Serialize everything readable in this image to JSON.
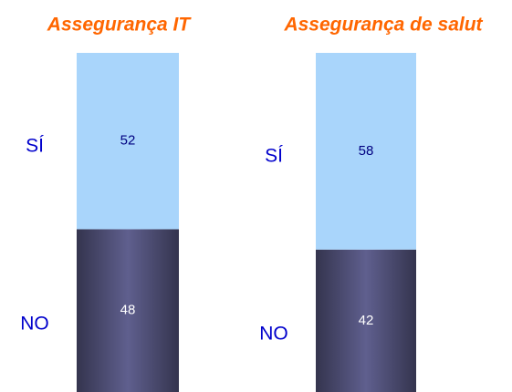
{
  "chart_data": [
    {
      "type": "bar",
      "title": "Assegurança IT",
      "ylim": [
        0,
        100
      ],
      "series": [
        {
          "name": "NO",
          "color": "#5f5f8e",
          "values": [
            48
          ]
        },
        {
          "name": "SÍ",
          "color": "#a9d5fb",
          "values": [
            52
          ]
        }
      ]
    },
    {
      "type": "bar",
      "title": "Assegurança de salut",
      "ylim": [
        0,
        100
      ],
      "series": [
        {
          "name": "NO",
          "color": "#5f5f8e",
          "values": [
            42
          ]
        },
        {
          "name": "SÍ",
          "color": "#a9d5fb",
          "values": [
            58
          ]
        }
      ]
    }
  ]
}
